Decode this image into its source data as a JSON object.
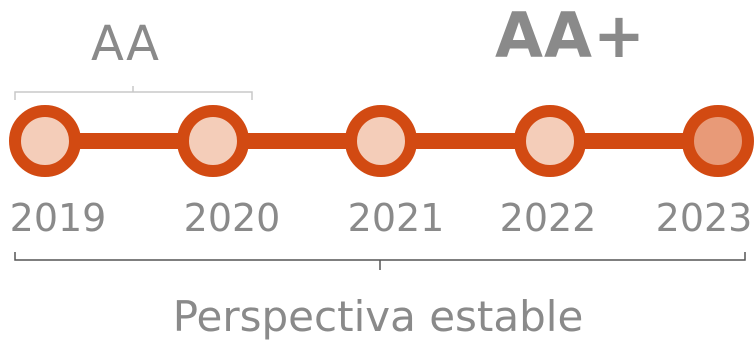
{
  "ratings": {
    "early": "AA",
    "latest": "AA+"
  },
  "timeline": {
    "years": [
      "2019",
      "2020",
      "2021",
      "2022",
      "2023"
    ],
    "highlighted_year": "2023"
  },
  "outlook": "Perspectiva estable",
  "colors": {
    "line": "#d24a12",
    "node_fill": "#f4cdb9",
    "node_fill_current": "#e89a78",
    "text": "#8a8a8a",
    "bracket": "#c8c8c8",
    "bracket_outlook": "#555555"
  }
}
